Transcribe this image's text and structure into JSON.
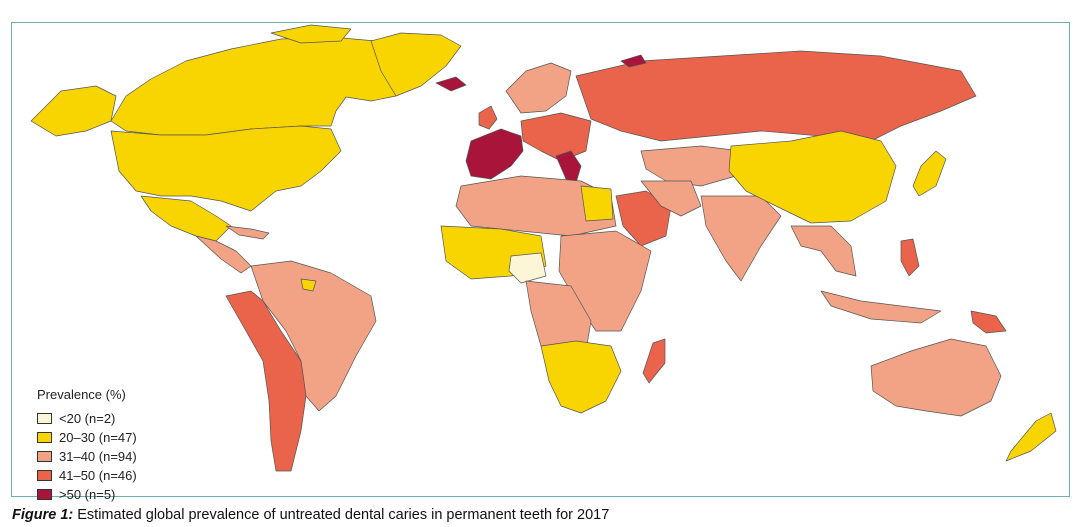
{
  "legend": {
    "title": "Prevalence (%)",
    "items": [
      {
        "label": "<20 (n=2)",
        "color": "#fdf6d6"
      },
      {
        "label": "20–30 (n=47)",
        "color": "#f8d500"
      },
      {
        "label": "31–40 (n=94)",
        "color": "#f2a385"
      },
      {
        "label": "41–50 (n=46)",
        "color": "#e9644a"
      },
      {
        "label": ">50 (n=5)",
        "color": "#a8143a"
      }
    ]
  },
  "caption": {
    "label": "Figure 1:",
    "text": " Estimated global prevalence of untreated dental caries in permanent teeth for 2017"
  },
  "map": {
    "colors": {
      "under20": "#fdf6d6",
      "p20_30": "#f8d500",
      "p31_40": "#f2a385",
      "p41_50": "#e9644a",
      "over50": "#a8143a",
      "greenland": "#ffffff",
      "border": "#555555",
      "frame": "#6fb0a8"
    }
  }
}
